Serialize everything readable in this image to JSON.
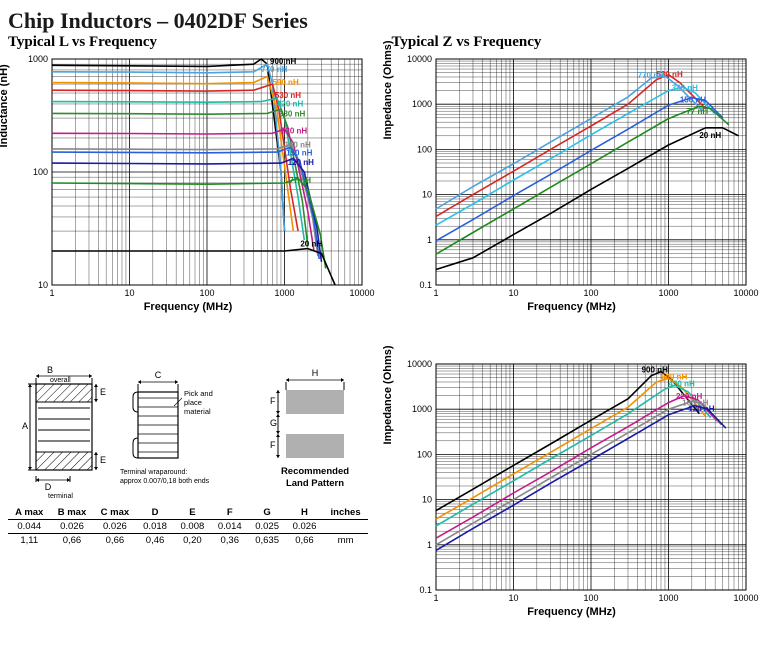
{
  "title": "Chip Inductors – 0402DF Series",
  "chartL": {
    "title": "Typical L vs Frequency",
    "type": "line-loglog",
    "xlabel": "Frequency (MHz)",
    "ylabel": "Inductance (nH)",
    "xlim": [
      1,
      10000
    ],
    "ylim": [
      10,
      1000
    ],
    "xticks": [
      1,
      10,
      100,
      1000,
      10000
    ],
    "yticks": [
      10,
      100,
      1000
    ],
    "background_color": "#ffffff",
    "grid_color": "#000000",
    "grid_width": 0.5,
    "label_fontsize": 11,
    "tick_fontsize": 9,
    "title_fontsize": 15,
    "line_width": 1.6,
    "series": [
      {
        "label": "900 nH",
        "color": "#000000",
        "label_x": 650,
        "label_y": 900,
        "points": [
          [
            1,
            880
          ],
          [
            10,
            870
          ],
          [
            100,
            860
          ],
          [
            400,
            900
          ],
          [
            500,
            1000
          ],
          [
            600,
            900
          ],
          [
            900,
            100
          ],
          [
            1000,
            30
          ]
        ]
      },
      {
        "label": "770 nH",
        "color": "#4aa3df",
        "label_x": 500,
        "label_y": 770,
        "points": [
          [
            1,
            770
          ],
          [
            10,
            765
          ],
          [
            100,
            755
          ],
          [
            400,
            770
          ],
          [
            600,
            900
          ],
          [
            700,
            600
          ],
          [
            900,
            100
          ],
          [
            1000,
            30
          ]
        ]
      },
      {
        "label": "590 nH",
        "color": "#f29100",
        "label_x": 700,
        "label_y": 590,
        "points": [
          [
            1,
            620
          ],
          [
            10,
            615
          ],
          [
            100,
            605
          ],
          [
            400,
            620
          ],
          [
            600,
            700
          ],
          [
            800,
            350
          ],
          [
            1100,
            70
          ],
          [
            1300,
            30
          ]
        ]
      },
      {
        "label": "530 nH",
        "color": "#d62728",
        "label_x": 750,
        "label_y": 450,
        "points": [
          [
            1,
            530
          ],
          [
            10,
            525
          ],
          [
            100,
            520
          ],
          [
            400,
            530
          ],
          [
            700,
            600
          ],
          [
            850,
            350
          ],
          [
            1200,
            70
          ],
          [
            1500,
            30
          ]
        ]
      },
      {
        "label": "420 nH",
        "color": "#1fbba6",
        "label_x": 800,
        "label_y": 380,
        "points": [
          [
            1,
            420
          ],
          [
            10,
            418
          ],
          [
            100,
            415
          ],
          [
            500,
            420
          ],
          [
            800,
            450
          ],
          [
            1000,
            300
          ],
          [
            1500,
            60
          ],
          [
            1800,
            25
          ]
        ]
      },
      {
        "label": "330 nH",
        "color": "#2e8b2e",
        "label_x": 850,
        "label_y": 310,
        "points": [
          [
            1,
            330
          ],
          [
            10,
            328
          ],
          [
            100,
            325
          ],
          [
            600,
            330
          ],
          [
            900,
            360
          ],
          [
            1100,
            250
          ],
          [
            1700,
            55
          ],
          [
            2000,
            22
          ]
        ]
      },
      {
        "label": "220 nH",
        "color": "#c51b8a",
        "label_x": 900,
        "label_y": 220,
        "points": [
          [
            1,
            220
          ],
          [
            10,
            219
          ],
          [
            100,
            217
          ],
          [
            700,
            220
          ],
          [
            1000,
            240
          ],
          [
            1300,
            180
          ],
          [
            2000,
            45
          ],
          [
            2400,
            20
          ]
        ]
      },
      {
        "label": "160 nH",
        "color": "#888888",
        "label_x": 1000,
        "label_y": 165,
        "points": [
          [
            1,
            160
          ],
          [
            10,
            159
          ],
          [
            100,
            158
          ],
          [
            800,
            160
          ],
          [
            1200,
            175
          ],
          [
            1500,
            130
          ],
          [
            2300,
            40
          ],
          [
            2700,
            18
          ]
        ]
      },
      {
        "label": "150 nH",
        "color": "#2b5fd9",
        "label_x": 1050,
        "label_y": 140,
        "points": [
          [
            1,
            150
          ],
          [
            10,
            149
          ],
          [
            100,
            148
          ],
          [
            800,
            150
          ],
          [
            1200,
            165
          ],
          [
            1600,
            120
          ],
          [
            2400,
            38
          ],
          [
            2800,
            17
          ]
        ]
      },
      {
        "label": "120 nH",
        "color": "#1a1aa6",
        "label_x": 1100,
        "label_y": 115,
        "points": [
          [
            1,
            120
          ],
          [
            10,
            119
          ],
          [
            100,
            118
          ],
          [
            900,
            120
          ],
          [
            1300,
            132
          ],
          [
            1800,
            100
          ],
          [
            2600,
            33
          ],
          [
            3000,
            16
          ]
        ]
      },
      {
        "label": "77 nH",
        "color": "#1f8a1f",
        "label_x": 1150,
        "label_y": 80,
        "points": [
          [
            1,
            80
          ],
          [
            10,
            79
          ],
          [
            100,
            78
          ],
          [
            1000,
            80
          ],
          [
            1500,
            88
          ],
          [
            2000,
            70
          ],
          [
            2900,
            28
          ],
          [
            3400,
            14
          ]
        ]
      },
      {
        "label": "20 nH",
        "color": "#000000",
        "label_x": 1600,
        "label_y": 22,
        "points": [
          [
            1,
            20
          ],
          [
            10,
            20
          ],
          [
            100,
            20
          ],
          [
            1000,
            20
          ],
          [
            2000,
            21
          ],
          [
            3000,
            19
          ],
          [
            4000,
            12
          ],
          [
            4500,
            10
          ]
        ]
      }
    ]
  },
  "chartZ1": {
    "title": "Typical Z vs Frequency",
    "type": "line-loglog",
    "xlabel": "Frequency (MHz)",
    "ylabel": "Impedance (Ohms)",
    "xlim": [
      1,
      10000
    ],
    "ylim": [
      0.1,
      10000
    ],
    "xticks": [
      1,
      10,
      100,
      1000,
      10000
    ],
    "yticks": [
      0.1,
      1,
      10,
      100,
      1000,
      10000
    ],
    "background_color": "#ffffff",
    "grid_color": "#000000",
    "grid_width": 0.5,
    "label_fontsize": 11,
    "tick_fontsize": 9,
    "title_fontsize": 15,
    "line_width": 1.6,
    "series": [
      {
        "label": "530 nH",
        "color": "#d62728",
        "label_x": 700,
        "label_y": 4000,
        "points": [
          [
            1,
            3.3
          ],
          [
            3,
            10
          ],
          [
            10,
            33
          ],
          [
            30,
            100
          ],
          [
            100,
            330
          ],
          [
            300,
            1000
          ],
          [
            700,
            3500
          ],
          [
            1000,
            4500
          ],
          [
            1400,
            3000
          ],
          [
            3000,
            800
          ]
        ]
      },
      {
        "label": "770 nH",
        "color": "#4aa3df",
        "label_x": 400,
        "label_y": 3800,
        "points": [
          [
            1,
            4.8
          ],
          [
            3,
            15
          ],
          [
            10,
            48
          ],
          [
            30,
            145
          ],
          [
            100,
            480
          ],
          [
            300,
            1450
          ],
          [
            600,
            3800
          ],
          [
            900,
            4200
          ],
          [
            1300,
            2600
          ],
          [
            2800,
            700
          ]
        ]
      },
      {
        "label": "330 nH",
        "color": "#2bc0eb",
        "label_x": 1100,
        "label_y": 2000,
        "points": [
          [
            1,
            2.1
          ],
          [
            3,
            6.2
          ],
          [
            10,
            21
          ],
          [
            30,
            62
          ],
          [
            100,
            210
          ],
          [
            300,
            620
          ],
          [
            1000,
            2000
          ],
          [
            1500,
            2400
          ],
          [
            2200,
            1800
          ],
          [
            4000,
            600
          ]
        ]
      },
      {
        "label": "150 nH",
        "color": "#2b5fd9",
        "label_x": 1400,
        "label_y": 1100,
        "points": [
          [
            1,
            0.95
          ],
          [
            3,
            2.8
          ],
          [
            10,
            9.5
          ],
          [
            30,
            28
          ],
          [
            100,
            95
          ],
          [
            300,
            280
          ],
          [
            1000,
            950
          ],
          [
            2000,
            1400
          ],
          [
            3000,
            1200
          ],
          [
            5000,
            500
          ]
        ]
      },
      {
        "label": "77 nH",
        "color": "#1f8a1f",
        "label_x": 1700,
        "label_y": 600,
        "points": [
          [
            1,
            0.48
          ],
          [
            3,
            1.45
          ],
          [
            10,
            4.8
          ],
          [
            30,
            14.5
          ],
          [
            100,
            48
          ],
          [
            300,
            145
          ],
          [
            1000,
            480
          ],
          [
            2500,
            900
          ],
          [
            3500,
            800
          ],
          [
            6000,
            350
          ]
        ]
      },
      {
        "label": "20 nH",
        "color": "#000000",
        "label_x": 2500,
        "label_y": 180,
        "points": [
          [
            1,
            0.22
          ],
          [
            3,
            0.4
          ],
          [
            10,
            1.3
          ],
          [
            30,
            3.8
          ],
          [
            100,
            13
          ],
          [
            300,
            38
          ],
          [
            1000,
            125
          ],
          [
            3000,
            300
          ],
          [
            5000,
            300
          ],
          [
            8000,
            200
          ]
        ]
      }
    ]
  },
  "chartZ2": {
    "type": "line-loglog",
    "xlabel": "Frequency (MHz)",
    "ylabel": "Impedance (Ohms)",
    "xlim": [
      1,
      10000
    ],
    "ylim": [
      0.1,
      10000
    ],
    "xticks": [
      1,
      10,
      100,
      1000,
      10000
    ],
    "yticks": [
      0.1,
      1,
      10,
      100,
      1000,
      10000
    ],
    "background_color": "#ffffff",
    "grid_color": "#000000",
    "grid_width": 0.5,
    "label_fontsize": 11,
    "tick_fontsize": 9,
    "line_width": 1.6,
    "series": [
      {
        "label": "900 nH",
        "color": "#000000",
        "label_x": 450,
        "label_y": 6500,
        "points": [
          [
            1,
            5.7
          ],
          [
            3,
            17
          ],
          [
            10,
            57
          ],
          [
            30,
            170
          ],
          [
            100,
            570
          ],
          [
            300,
            1700
          ],
          [
            600,
            5500
          ],
          [
            800,
            6800
          ],
          [
            1100,
            4500
          ],
          [
            2500,
            800
          ]
        ]
      },
      {
        "label": "590 nH",
        "color": "#f29100",
        "label_x": 800,
        "label_y": 4500,
        "points": [
          [
            1,
            3.7
          ],
          [
            3,
            11
          ],
          [
            10,
            37
          ],
          [
            30,
            111
          ],
          [
            100,
            370
          ],
          [
            300,
            1110
          ],
          [
            700,
            4000
          ],
          [
            1000,
            4800
          ],
          [
            1500,
            3000
          ],
          [
            3000,
            700
          ]
        ]
      },
      {
        "label": "420 nH",
        "color": "#1fbba6",
        "label_x": 1000,
        "label_y": 3200,
        "points": [
          [
            1,
            2.6
          ],
          [
            3,
            7.9
          ],
          [
            10,
            26
          ],
          [
            30,
            79
          ],
          [
            100,
            260
          ],
          [
            300,
            790
          ],
          [
            900,
            2800
          ],
          [
            1200,
            3400
          ],
          [
            1800,
            2400
          ],
          [
            3500,
            650
          ]
        ]
      },
      {
        "label": "220 nH",
        "color": "#c51b8a",
        "label_x": 1250,
        "label_y": 1700,
        "points": [
          [
            1,
            1.4
          ],
          [
            3,
            4.1
          ],
          [
            10,
            14
          ],
          [
            30,
            41
          ],
          [
            100,
            140
          ],
          [
            300,
            410
          ],
          [
            1000,
            1400
          ],
          [
            1600,
            2000
          ],
          [
            2400,
            1600
          ],
          [
            4200,
            550
          ]
        ]
      },
      {
        "label": "160 nH",
        "color": "#888888",
        "label_x": 1500,
        "label_y": 1200,
        "points": [
          [
            1,
            1.0
          ],
          [
            3,
            3
          ],
          [
            10,
            10
          ],
          [
            30,
            30
          ],
          [
            100,
            100
          ],
          [
            300,
            300
          ],
          [
            1000,
            1000
          ],
          [
            2000,
            1500
          ],
          [
            2800,
            1300
          ],
          [
            4800,
            450
          ]
        ]
      },
      {
        "label": "120 nH",
        "color": "#1a1aa6",
        "label_x": 1800,
        "label_y": 900,
        "points": [
          [
            1,
            0.75
          ],
          [
            3,
            2.3
          ],
          [
            10,
            7.5
          ],
          [
            30,
            23
          ],
          [
            100,
            75
          ],
          [
            300,
            225
          ],
          [
            1000,
            750
          ],
          [
            2200,
            1200
          ],
          [
            3200,
            1000
          ],
          [
            5500,
            380
          ]
        ]
      }
    ]
  },
  "dimensions": {
    "columns": [
      "A max",
      "B max",
      "C max",
      "D",
      "E",
      "F",
      "G",
      "H"
    ],
    "units": [
      "inches",
      "mm"
    ],
    "rows": [
      [
        "0.044",
        "0.026",
        "0.026",
        "0.018",
        "0.008",
        "0.014",
        "0.025",
        "0.026"
      ],
      [
        "1,11",
        "0,66",
        "0,66",
        "0,46",
        "0,20",
        "0,36",
        "0,635",
        "0,66"
      ]
    ],
    "notes": {
      "b": "overall",
      "d": "terminal",
      "pick": "Pick and place material",
      "wrap": "Terminal wraparound: approx 0.007/0,18 both ends",
      "rec": "Recommended Land Pattern"
    },
    "header_fontsize": 9.5,
    "cell_fontsize": 9.5,
    "note_fontsize": 7.5,
    "pad_color": "#b0b0b0",
    "outline_color": "#000000",
    "hatch_color": "#000000"
  }
}
